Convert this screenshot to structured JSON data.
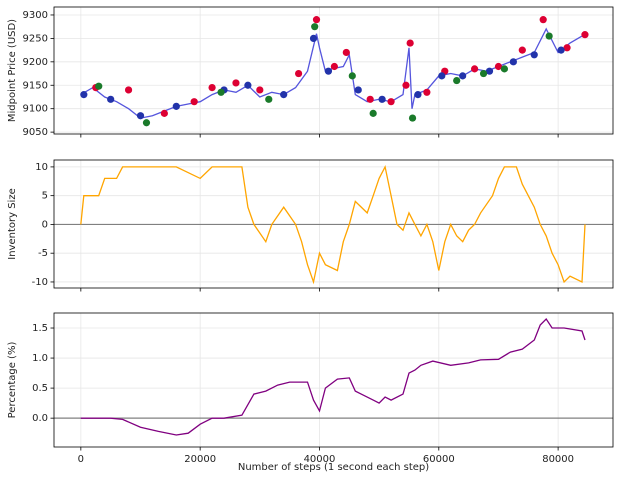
{
  "chart_data": [
    {
      "type": "line",
      "ylabel": "Midpoint Price (USD)",
      "grid": true,
      "xlim": [
        -4500,
        89200
      ],
      "ylim": [
        9046,
        9317
      ],
      "xticks": [
        0,
        20000,
        40000,
        60000,
        80000
      ],
      "yticks": [
        9050,
        9100,
        9150,
        9200,
        9250,
        9300
      ],
      "series": [
        {
          "type": "line",
          "color": "#5555dd",
          "x": [
            0,
            2000,
            4000,
            6000,
            8000,
            10000,
            12000,
            14000,
            16000,
            18000,
            20000,
            22000,
            24000,
            26000,
            28000,
            30000,
            32000,
            34000,
            36000,
            38000,
            39500,
            40000,
            41000,
            42000,
            44000,
            45000,
            46000,
            48000,
            50000,
            52000,
            54000,
            55000,
            55500,
            56000,
            58000,
            60000,
            62000,
            64000,
            66000,
            68000,
            70000,
            72000,
            74000,
            76000,
            78000,
            80000,
            82000,
            84000
          ],
          "values": [
            9130,
            9145,
            9125,
            9115,
            9100,
            9080,
            9085,
            9095,
            9105,
            9110,
            9115,
            9130,
            9140,
            9135,
            9150,
            9125,
            9135,
            9130,
            9145,
            9180,
            9260,
            9230,
            9180,
            9185,
            9190,
            9215,
            9130,
            9115,
            9120,
            9115,
            9130,
            9230,
            9100,
            9130,
            9140,
            9170,
            9175,
            9170,
            9185,
            9180,
            9190,
            9200,
            9210,
            9220,
            9270,
            9220,
            9240,
            9255
          ]
        },
        {
          "type": "scatter",
          "color": "#dd0033",
          "x": [
            2500,
            8000,
            14000,
            19000,
            22000,
            26000,
            30000,
            36500,
            39500,
            42500,
            44500,
            48500,
            52000,
            54500,
            55200,
            58000,
            61000,
            66000,
            70000,
            74000,
            77500,
            81500,
            84500
          ],
          "values": [
            9145,
            9140,
            9090,
            9115,
            9145,
            9155,
            9140,
            9175,
            9290,
            9190,
            9220,
            9120,
            9115,
            9150,
            9240,
            9135,
            9180,
            9185,
            9190,
            9225,
            9290,
            9230,
            9258
          ]
        },
        {
          "type": "scatter",
          "color": "#2233aa",
          "x": [
            500,
            5000,
            10000,
            16000,
            24000,
            28000,
            34000,
            39000,
            41500,
            46500,
            50500,
            56500,
            60500,
            64000,
            68500,
            72500,
            76000,
            80500
          ],
          "values": [
            9130,
            9120,
            9085,
            9105,
            9140,
            9150,
            9130,
            9250,
            9180,
            9140,
            9120,
            9130,
            9170,
            9170,
            9180,
            9200,
            9215,
            9225
          ]
        },
        {
          "type": "scatter",
          "color": "#1a7a2a",
          "x": [
            3000,
            11000,
            23500,
            31500,
            39200,
            45500,
            49000,
            55600,
            63000,
            67500,
            71000,
            78500
          ],
          "values": [
            9148,
            9070,
            9135,
            9120,
            9275,
            9170,
            9090,
            9080,
            9160,
            9175,
            9185,
            9255
          ]
        }
      ]
    },
    {
      "type": "line",
      "ylabel": "Inventory Size",
      "grid": true,
      "hline": 0,
      "xlim": [
        -4500,
        89200
      ],
      "ylim": [
        -11.05,
        11.2
      ],
      "xticks": [
        0,
        20000,
        40000,
        60000,
        80000
      ],
      "yticks": [
        -10,
        -5,
        0,
        5,
        10
      ],
      "series": [
        {
          "type": "line",
          "color": "#ffa500",
          "x": [
            0,
            500,
            3000,
            4000,
            6000,
            7000,
            12000,
            16000,
            20000,
            22000,
            27000,
            28000,
            29000,
            31000,
            32000,
            34000,
            36000,
            37000,
            38000,
            39000,
            40000,
            41000,
            43000,
            44000,
            45000,
            46000,
            48000,
            49000,
            50000,
            51000,
            52000,
            53000,
            54000,
            55000,
            56000,
            57000,
            58000,
            59000,
            60000,
            61000,
            62000,
            63000,
            64000,
            65000,
            66000,
            67000,
            69000,
            70000,
            71000,
            73000,
            74000,
            76000,
            77000,
            78000,
            79000,
            80000,
            81000,
            82000,
            84000,
            84500
          ],
          "values": [
            0,
            5,
            5,
            8,
            8,
            10,
            10,
            10,
            8,
            10,
            10,
            3,
            0,
            -3,
            0,
            3,
            0,
            -3,
            -7,
            -10,
            -5,
            -7,
            -8,
            -3,
            0,
            4,
            2,
            5,
            8,
            10,
            5,
            0,
            -1,
            2,
            0,
            -2,
            0,
            -3,
            -8,
            -3,
            0,
            -2,
            -3,
            -1,
            0,
            2,
            5,
            8,
            10,
            10,
            7,
            3,
            0,
            -2,
            -5,
            -7,
            -10,
            -9,
            -10,
            0
          ]
        }
      ]
    },
    {
      "type": "line",
      "ylabel": "Percentage (%)",
      "xlabel": "Number of steps (1 second each step)",
      "grid": true,
      "hline": 0,
      "xlim": [
        -4500,
        89200
      ],
      "ylim": [
        -0.48,
        1.75
      ],
      "xticks": [
        0,
        20000,
        40000,
        60000,
        80000
      ],
      "yticks": [
        {
          "value": 0,
          "label": "0.0"
        },
        0.5,
        {
          "value": 1,
          "label": "1.0"
        },
        1.5
      ],
      "series": [
        {
          "type": "line",
          "color": "#800080",
          "x": [
            0,
            5000,
            7000,
            10000,
            13000,
            16000,
            18000,
            20000,
            22000,
            24000,
            27000,
            29000,
            31000,
            33000,
            35000,
            38000,
            39000,
            40000,
            41000,
            43000,
            45000,
            46000,
            47000,
            49000,
            50000,
            51000,
            52000,
            54000,
            55000,
            56000,
            57000,
            59000,
            62000,
            65000,
            67000,
            70000,
            72000,
            74000,
            76000,
            77000,
            78000,
            79000,
            81000,
            84000,
            84500
          ],
          "values": [
            0,
            0,
            -0.02,
            -0.15,
            -0.22,
            -0.28,
            -0.25,
            -0.1,
            0,
            0,
            0.05,
            0.4,
            0.45,
            0.55,
            0.6,
            0.6,
            0.3,
            0.12,
            0.5,
            0.65,
            0.67,
            0.45,
            0.4,
            0.3,
            0.25,
            0.35,
            0.3,
            0.4,
            0.75,
            0.8,
            0.88,
            0.95,
            0.88,
            0.92,
            0.97,
            0.98,
            1.1,
            1.15,
            1.3,
            1.55,
            1.65,
            1.5,
            1.5,
            1.45,
            1.3
          ]
        }
      ]
    }
  ]
}
